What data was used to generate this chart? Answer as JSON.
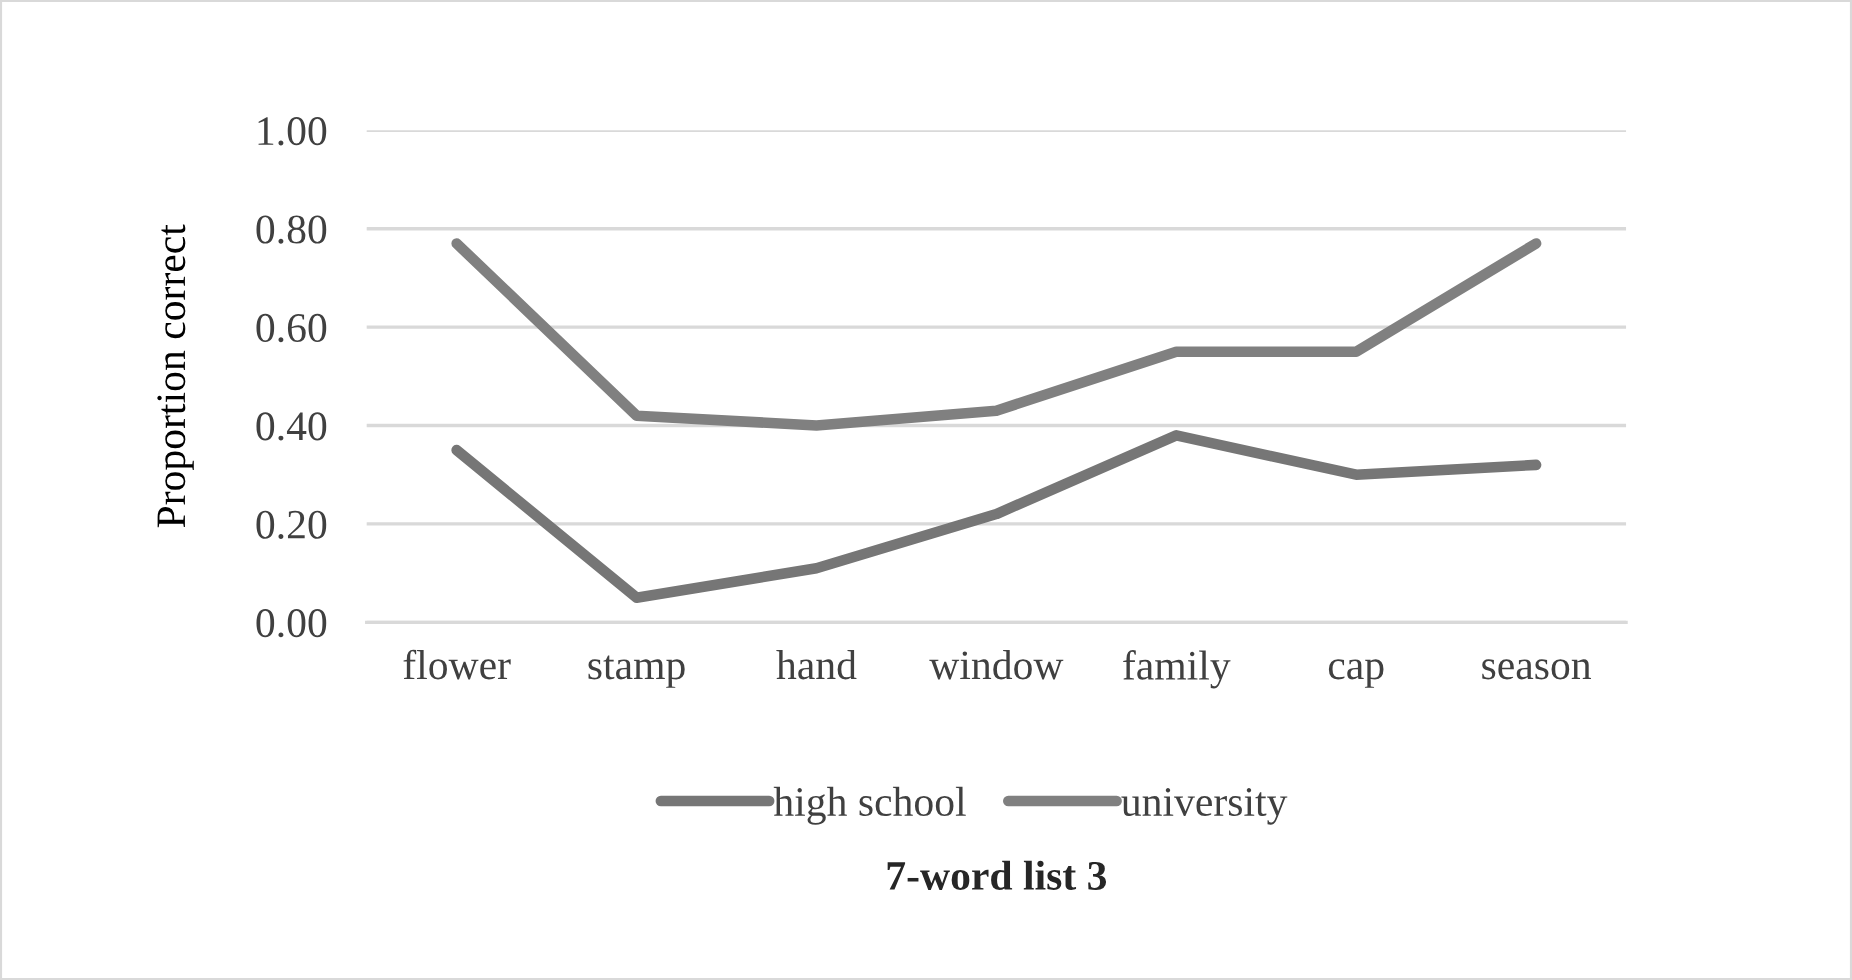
{
  "chart_data": {
    "type": "line",
    "xlabel": "7-word list 3",
    "ylabel": "Proportion correct",
    "categories": [
      "flower",
      "stamp",
      "hand",
      "window",
      "family",
      "cap",
      "season"
    ],
    "series": [
      {
        "name": "high school",
        "color": "#767676",
        "values": [
          0.35,
          0.05,
          0.11,
          0.22,
          0.38,
          0.3,
          0.32
        ]
      },
      {
        "name": "university",
        "color": "#808080",
        "values": [
          0.77,
          0.42,
          0.4,
          0.43,
          0.55,
          0.55,
          0.77
        ]
      }
    ],
    "ylim": [
      0,
      1.0
    ],
    "yticks": [
      {
        "value": 0,
        "label": "0.00"
      },
      {
        "value": 0.2,
        "label": "0.20"
      },
      {
        "value": 0.4,
        "label": "0.40"
      },
      {
        "value": 0.6,
        "label": "0.60"
      },
      {
        "value": 0.8,
        "label": "0.80"
      },
      {
        "value": 1.0,
        "label": "1.00"
      }
    ],
    "grid": "y",
    "legend": "bottom",
    "line_style": "solid"
  }
}
